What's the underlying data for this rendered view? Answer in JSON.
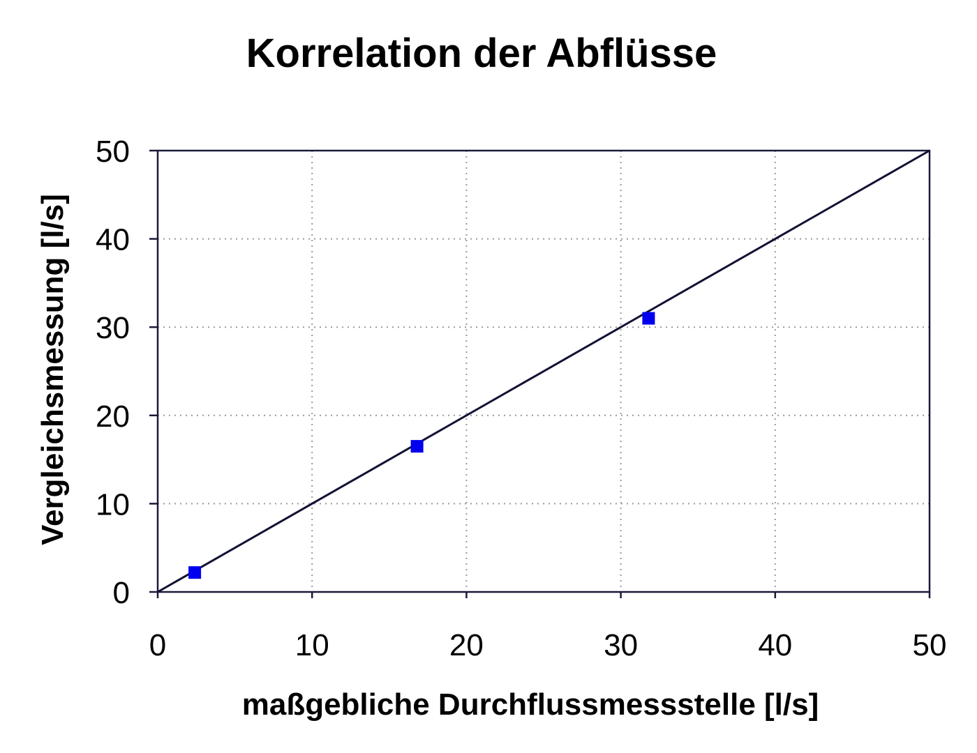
{
  "chart_data": {
    "type": "scatter",
    "title": "Korrelation der Abflüsse",
    "xlabel": "maßgebliche Durchflussmessstelle [l/s]",
    "ylabel": "Vergleichsmessung [l/s]",
    "xlim": [
      0,
      50
    ],
    "ylim": [
      0,
      50
    ],
    "xticks": [
      "0",
      "10",
      "20",
      "30",
      "40",
      "50"
    ],
    "yticks": [
      "0",
      "10",
      "20",
      "30",
      "40",
      "50"
    ],
    "grid": true,
    "series": [
      {
        "marker": "square",
        "color": "#0000ee",
        "points": [
          {
            "x": 2.4,
            "y": 2.2
          },
          {
            "x": 16.8,
            "y": 16.5
          },
          {
            "x": 31.8,
            "y": 31.0
          }
        ]
      }
    ],
    "reference_line": {
      "from": {
        "x": 0,
        "y": 0
      },
      "to": {
        "x": 50,
        "y": 50
      },
      "color": "#111133"
    }
  }
}
